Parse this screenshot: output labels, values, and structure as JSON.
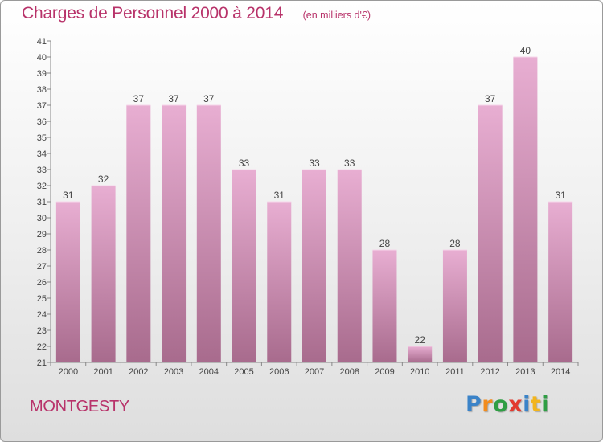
{
  "header": {
    "title": "Charges de Personnel 2000 à 2014",
    "subtitle": "(en milliers d'€)"
  },
  "footer": {
    "commune": "MONTGESTY",
    "logo": {
      "letters": [
        "P",
        "r",
        "o",
        "x",
        "i",
        "t",
        "i"
      ],
      "colors": [
        "#3b83c8",
        "#f28c1e",
        "#2f9e44",
        "#e23a2f",
        "#3b83c8",
        "#f2b51e",
        "#2f9e44"
      ]
    }
  },
  "colors": {
    "accent": "#b8336a",
    "bar_top": "#e8aed2",
    "bar_bottom": "#a86b8d",
    "axis": "#888888"
  },
  "chart_data": {
    "type": "bar",
    "title": "Charges de Personnel 2000 à 2014",
    "subtitle": "(en milliers d'€)",
    "categories": [
      "2000",
      "2001",
      "2002",
      "2003",
      "2004",
      "2005",
      "2006",
      "2007",
      "2008",
      "2009",
      "2010",
      "2011",
      "2012",
      "2013",
      "2014"
    ],
    "values": [
      31,
      32,
      37,
      37,
      37,
      33,
      31,
      33,
      33,
      28,
      22,
      28,
      37,
      40,
      31
    ],
    "ylim": [
      21,
      41
    ],
    "yticks": [
      "21",
      "22",
      "23",
      "24",
      "25",
      "26",
      "27",
      "28",
      "29",
      "30",
      "31",
      "32",
      "33",
      "34",
      "35",
      "36",
      "37",
      "38",
      "39",
      "40",
      "41"
    ],
    "xlabel": "",
    "ylabel": "",
    "grid": false,
    "data_labels": true
  }
}
